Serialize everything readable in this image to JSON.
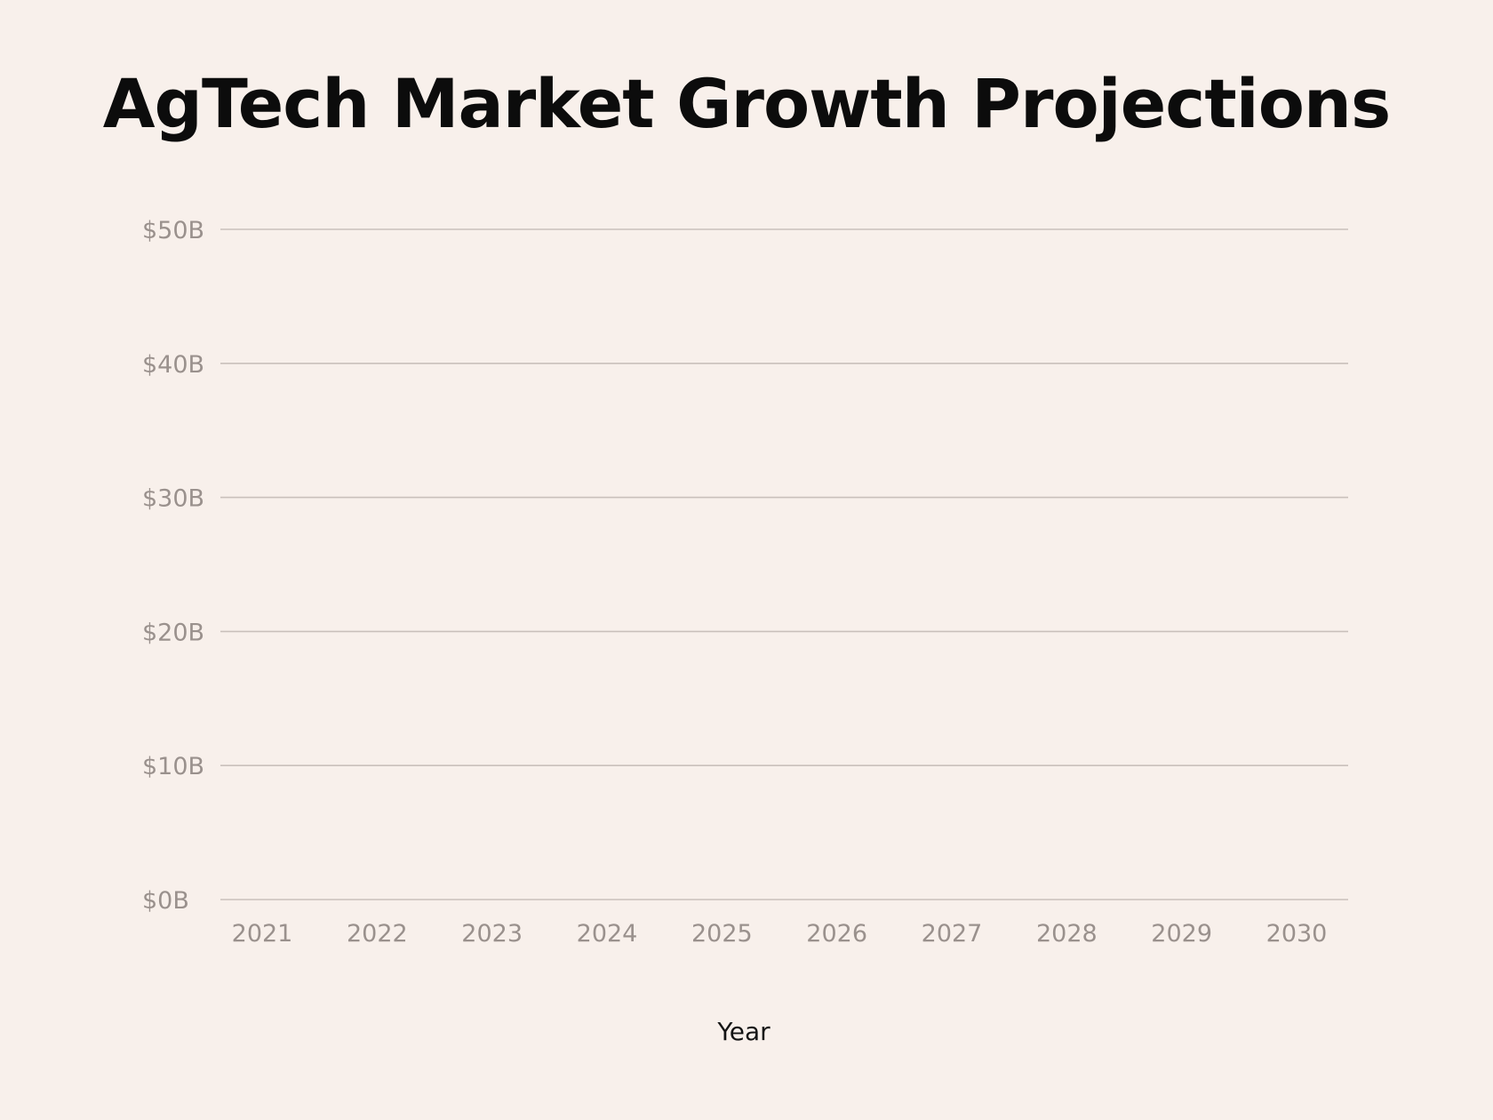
{
  "chart_data": {
    "type": "line",
    "title": "AgTech Market Growth Projections",
    "xlabel": "Year",
    "ylabel": "",
    "x": [
      "2021",
      "2022",
      "2023",
      "2024",
      "2025",
      "2026",
      "2027",
      "2028",
      "2029",
      "2030"
    ],
    "y_ticks": [
      "$0B",
      "$10B",
      "$20B",
      "$30B",
      "$40B",
      "$50B"
    ],
    "ylim": [
      0,
      50
    ],
    "grid": true,
    "series": [],
    "background": "#f8f0eb"
  }
}
